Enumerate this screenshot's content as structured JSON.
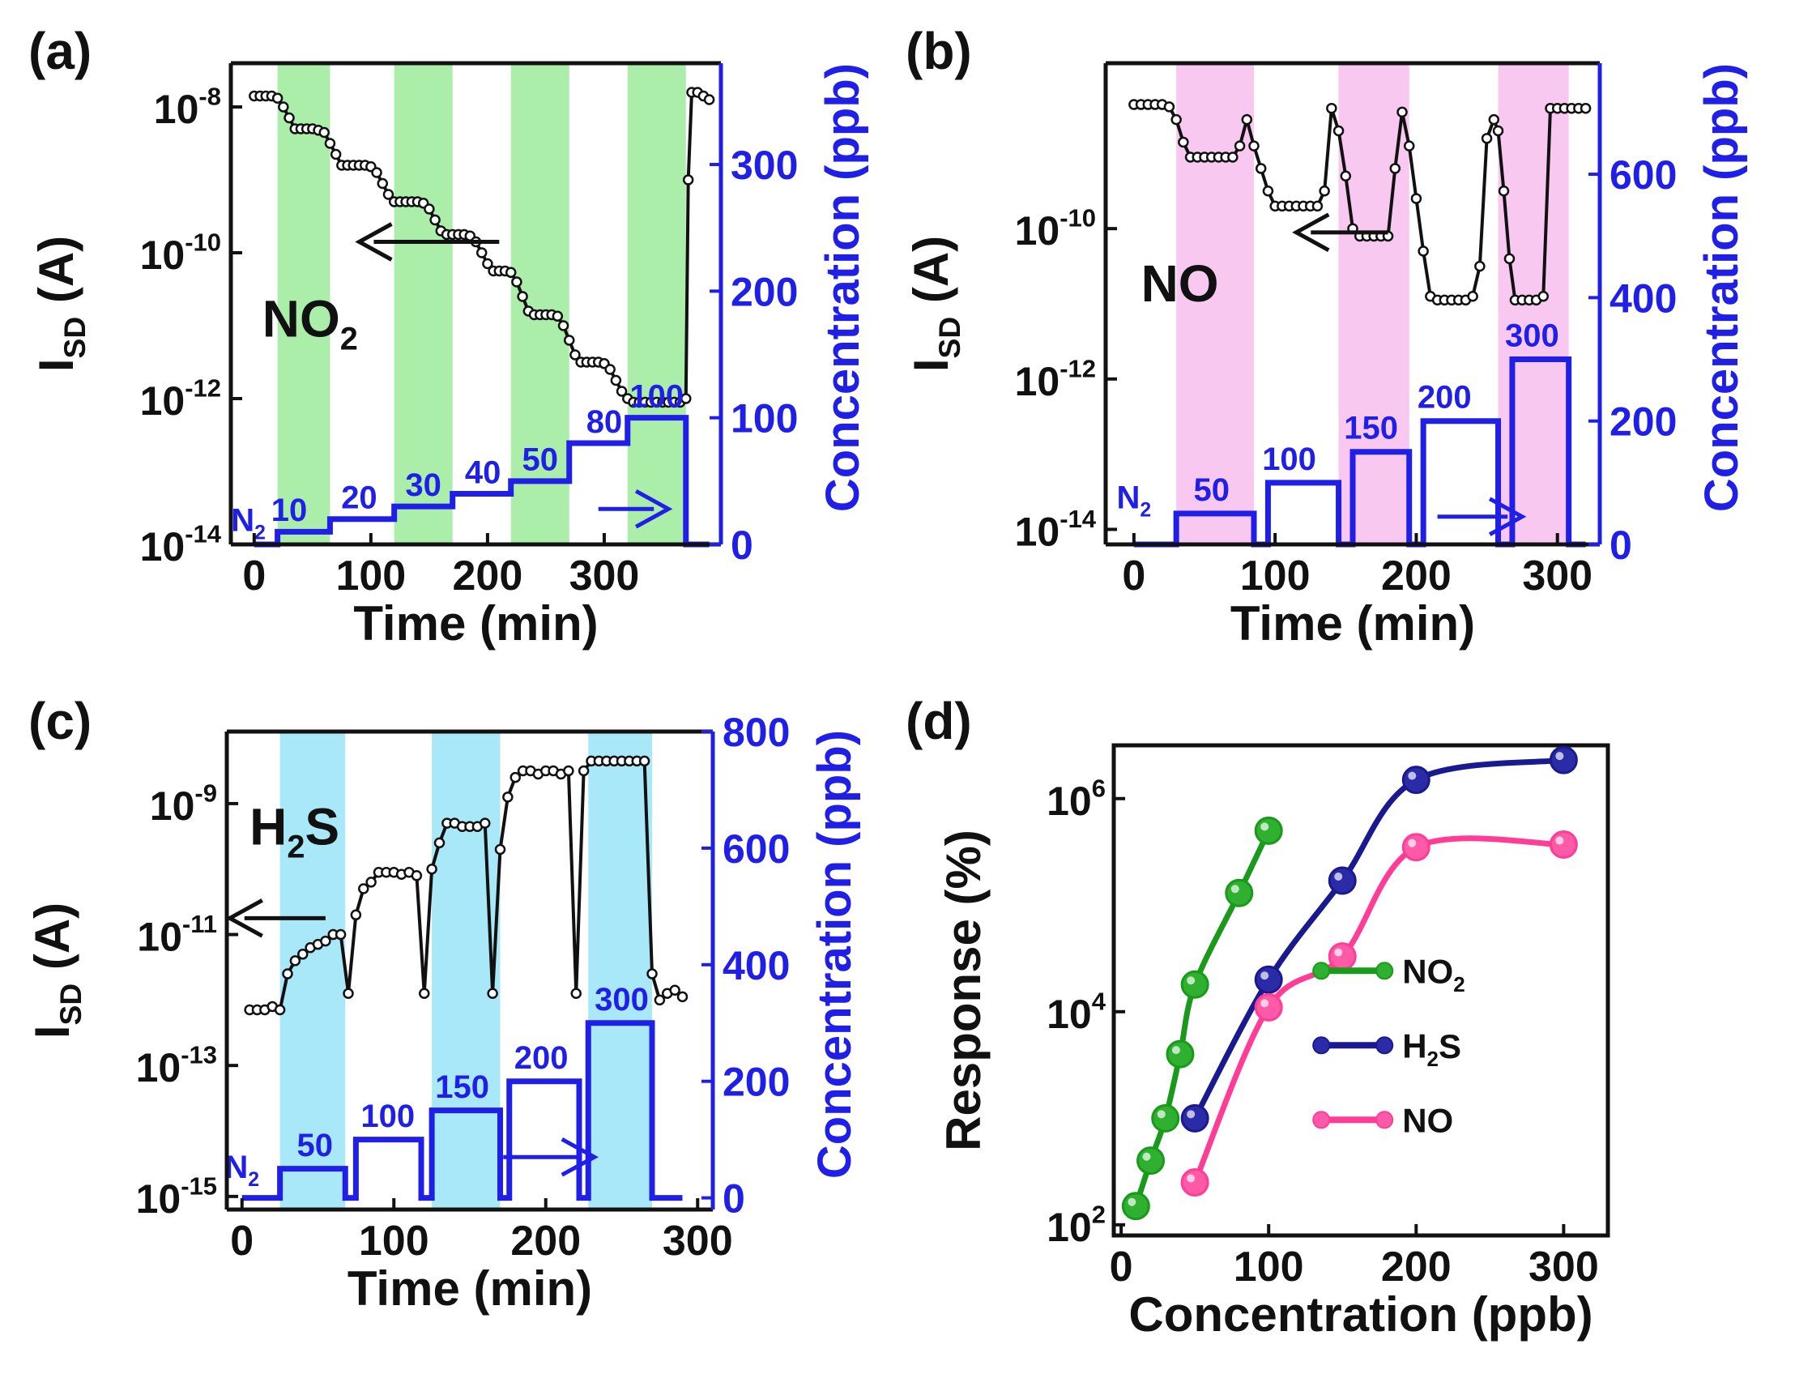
{
  "chart_data": [
    {
      "panel": "(a)",
      "type": "line",
      "title": "",
      "gas_label": "NO",
      "gas_sub": "2",
      "xlabel": "Time (min)",
      "ylabel_left_main": "I",
      "ylabel_left_sub": "SD",
      "ylabel_left_tail": " (A)",
      "ylabel_right": "Concentration (ppb)",
      "xlim": [
        -20,
        400
      ],
      "xticks": [
        "0",
        "100",
        "200",
        "300"
      ],
      "ylim_left_exp": [
        -14,
        -7.4
      ],
      "yticks_left": [
        {
          "base": "10",
          "exp": "-8"
        },
        {
          "base": "10",
          "exp": "-10"
        },
        {
          "base": "10",
          "exp": "-12"
        },
        {
          "base": "10",
          "exp": "-14"
        }
      ],
      "ylim_right": [
        0,
        380
      ],
      "yticks_right": [
        "0",
        "100",
        "200",
        "300"
      ],
      "band_color": "#aaeeaa",
      "gas_windows": [
        [
          20,
          65
        ],
        [
          120,
          170
        ],
        [
          220,
          270
        ],
        [
          320,
          370
        ]
      ],
      "current_series_log10": {
        "x": [
          0,
          5,
          10,
          15,
          20,
          25,
          30,
          35,
          40,
          45,
          50,
          55,
          60,
          65,
          70,
          75,
          80,
          85,
          90,
          95,
          100,
          105,
          110,
          115,
          120,
          125,
          130,
          135,
          140,
          145,
          150,
          155,
          160,
          165,
          170,
          175,
          180,
          185,
          190,
          195,
          200,
          205,
          210,
          215,
          220,
          225,
          230,
          235,
          240,
          245,
          250,
          255,
          260,
          265,
          270,
          275,
          280,
          285,
          290,
          295,
          300,
          305,
          310,
          315,
          320,
          325,
          330,
          335,
          340,
          345,
          350,
          355,
          360,
          365,
          370,
          372,
          375,
          380,
          385,
          390
        ],
        "y": [
          -7.85,
          -7.85,
          -7.85,
          -7.85,
          -7.88,
          -8.0,
          -8.15,
          -8.3,
          -8.3,
          -8.3,
          -8.3,
          -8.32,
          -8.35,
          -8.5,
          -8.65,
          -8.8,
          -8.8,
          -8.8,
          -8.8,
          -8.8,
          -8.82,
          -8.9,
          -9.05,
          -9.2,
          -9.3,
          -9.3,
          -9.3,
          -9.3,
          -9.3,
          -9.32,
          -9.4,
          -9.55,
          -9.7,
          -9.75,
          -9.75,
          -9.75,
          -9.75,
          -9.77,
          -9.85,
          -10.0,
          -10.15,
          -10.25,
          -10.25,
          -10.25,
          -10.27,
          -10.4,
          -10.6,
          -10.8,
          -10.85,
          -10.85,
          -10.85,
          -10.85,
          -10.87,
          -11.0,
          -11.2,
          -11.4,
          -11.5,
          -11.5,
          -11.5,
          -11.5,
          -11.52,
          -11.6,
          -11.75,
          -11.9,
          -12.0,
          -12.05,
          -12.05,
          -12.05,
          -12.05,
          -12.05,
          -12.05,
          -12.05,
          -12.05,
          -12.05,
          -12.0,
          -9.0,
          -7.8,
          -7.8,
          -7.85,
          -7.9
        ]
      },
      "concentration_series": {
        "x": [
          0,
          20,
          20,
          65,
          65,
          120,
          120,
          170,
          170,
          220,
          220,
          270,
          270,
          320,
          320,
          370,
          370,
          390
        ],
        "y": [
          0,
          0,
          10,
          10,
          20,
          20,
          30,
          30,
          40,
          40,
          50,
          50,
          80,
          80,
          100,
          100,
          0,
          0
        ]
      },
      "step_labels": [
        {
          "text": "N",
          "sub": "2",
          "x": -5,
          "y": 4
        },
        {
          "text": "10",
          "x": 30,
          "y": 12
        },
        {
          "text": "20",
          "x": 90,
          "y": 22
        },
        {
          "text": "30",
          "x": 145,
          "y": 32
        },
        {
          "text": "40",
          "x": 196,
          "y": 42
        },
        {
          "text": "50",
          "x": 245,
          "y": 52
        },
        {
          "text": "80",
          "x": 300,
          "y": 82
        },
        {
          "text": "100",
          "x": 345,
          "y": 102
        }
      ],
      "left_arrow": {
        "x_from": 210,
        "x_to": 90,
        "y_log": -9.85
      },
      "right_arrow": {
        "x_from": 295,
        "x_to": 355,
        "y_conc": 28
      }
    },
    {
      "panel": "(b)",
      "type": "line",
      "title": "",
      "gas_label": "NO",
      "gas_sub": "",
      "xlabel": "Time (min)",
      "ylabel_left_main": "I",
      "ylabel_left_sub": "SD",
      "ylabel_left_tail": " (A)",
      "ylabel_right": "Concentration (ppb)",
      "xlim": [
        -20,
        330
      ],
      "xticks": [
        "0",
        "100",
        "200",
        "300"
      ],
      "ylim_left_exp": [
        -14.2,
        -7.8
      ],
      "yticks_left": [
        {
          "base": "10",
          "exp": "-10"
        },
        {
          "base": "10",
          "exp": "-12"
        },
        {
          "base": "10",
          "exp": "-14"
        }
      ],
      "ylim_right": [
        0,
        780
      ],
      "yticks_right": [
        "0",
        "200",
        "400",
        "600"
      ],
      "band_color": "#f8c8f0",
      "gas_windows": [
        [
          30,
          85
        ],
        [
          145,
          195
        ],
        [
          258,
          308
        ]
      ],
      "current_series_log10": {
        "x": [
          0,
          5,
          10,
          15,
          20,
          25,
          30,
          35,
          40,
          45,
          50,
          55,
          60,
          65,
          70,
          75,
          80,
          85,
          90,
          95,
          100,
          105,
          110,
          115,
          120,
          125,
          130,
          135,
          140,
          145,
          150,
          155,
          160,
          165,
          170,
          175,
          180,
          185,
          190,
          195,
          200,
          205,
          210,
          215,
          220,
          225,
          230,
          235,
          240,
          245,
          250,
          255,
          258,
          262,
          266,
          270,
          275,
          280,
          285,
          290,
          295,
          300,
          305,
          310,
          315,
          320
        ],
        "y": [
          -8.35,
          -8.35,
          -8.35,
          -8.35,
          -8.35,
          -8.38,
          -8.55,
          -8.85,
          -9.05,
          -9.05,
          -9.05,
          -9.05,
          -9.05,
          -9.05,
          -9.05,
          -8.9,
          -8.55,
          -8.9,
          -9.2,
          -9.5,
          -9.7,
          -9.7,
          -9.7,
          -9.7,
          -9.7,
          -9.7,
          -9.7,
          -9.5,
          -8.4,
          -8.7,
          -9.3,
          -10.0,
          -10.1,
          -10.1,
          -10.1,
          -10.1,
          -10.1,
          -9.2,
          -8.45,
          -8.9,
          -9.6,
          -10.3,
          -10.9,
          -10.95,
          -10.95,
          -10.95,
          -10.95,
          -10.95,
          -10.9,
          -10.5,
          -8.8,
          -8.55,
          -8.7,
          -9.5,
          -10.4,
          -10.95,
          -10.95,
          -10.95,
          -10.95,
          -10.9,
          -8.4,
          -8.4,
          -8.4,
          -8.4,
          -8.4,
          -8.4
        ]
      },
      "concentration_series": {
        "x": [
          0,
          30,
          30,
          85,
          85,
          95,
          95,
          145,
          145,
          155,
          155,
          195,
          195,
          205,
          205,
          258,
          258,
          268,
          268,
          308,
          308,
          320
        ],
        "y": [
          0,
          0,
          50,
          50,
          0,
          0,
          100,
          100,
          0,
          0,
          150,
          150,
          0,
          0,
          200,
          200,
          0,
          0,
          300,
          300,
          0,
          0
        ]
      },
      "step_labels": [
        {
          "text": "N",
          "sub": "2",
          "x": 0,
          "y": 45
        },
        {
          "text": "50",
          "x": 55,
          "y": 58
        },
        {
          "text": "100",
          "x": 110,
          "y": 108
        },
        {
          "text": "150",
          "x": 168,
          "y": 158
        },
        {
          "text": "200",
          "x": 220,
          "y": 208
        },
        {
          "text": "300",
          "x": 282,
          "y": 308
        }
      ],
      "left_arrow": {
        "x_from": 180,
        "x_to": 115,
        "y_log": -10.05
      },
      "right_arrow": {
        "x_from": 215,
        "x_to": 275,
        "y_conc": 45
      }
    },
    {
      "panel": "(c)",
      "type": "line",
      "title": "",
      "gas_label": "H",
      "gas_sub": "2",
      "gas_tail": "S",
      "xlabel": "Time (min)",
      "ylabel_left_main": "I",
      "ylabel_left_sub": "SD",
      "ylabel_left_tail": " (A)",
      "ylabel_right": "Concentration (ppb)",
      "xlim": [
        -10,
        310
      ],
      "xticks": [
        "0",
        "100",
        "200",
        "300"
      ],
      "ylim_left_exp": [
        -15.2,
        -7.9
      ],
      "yticks_left": [
        {
          "base": "10",
          "exp": "-9"
        },
        {
          "base": "10",
          "exp": "-11"
        },
        {
          "base": "10",
          "exp": "-13"
        },
        {
          "base": "10",
          "exp": "-15"
        }
      ],
      "ylim_right": [
        -20,
        800
      ],
      "yticks_right": [
        "0",
        "200",
        "400",
        "600",
        "800"
      ],
      "band_color": "#a8e8f8",
      "gas_windows": [
        [
          25,
          68
        ],
        [
          125,
          170
        ],
        [
          228,
          270
        ]
      ],
      "current_series_log10": {
        "x": [
          5,
          10,
          15,
          20,
          25,
          30,
          35,
          40,
          45,
          50,
          55,
          60,
          65,
          70,
          75,
          80,
          85,
          90,
          95,
          100,
          105,
          110,
          115,
          120,
          125,
          130,
          135,
          140,
          145,
          150,
          155,
          160,
          165,
          170,
          175,
          180,
          185,
          190,
          195,
          200,
          205,
          210,
          215,
          220,
          225,
          230,
          235,
          240,
          245,
          250,
          255,
          260,
          265,
          270,
          275,
          280,
          285,
          290
        ],
        "y": [
          -12.15,
          -12.15,
          -12.15,
          -12.1,
          -12.15,
          -11.6,
          -11.4,
          -11.3,
          -11.2,
          -11.15,
          -11.1,
          -11.0,
          -11.0,
          -11.9,
          -10.7,
          -10.3,
          -10.2,
          -10.05,
          -10.05,
          -10.05,
          -10.08,
          -10.05,
          -10.1,
          -11.9,
          -10.0,
          -9.6,
          -9.3,
          -9.3,
          -9.35,
          -9.35,
          -9.35,
          -9.3,
          -11.9,
          -9.7,
          -8.9,
          -8.6,
          -8.5,
          -8.5,
          -8.55,
          -8.5,
          -8.5,
          -8.55,
          -8.5,
          -11.9,
          -8.5,
          -8.35,
          -8.35,
          -8.35,
          -8.35,
          -8.35,
          -8.35,
          -8.35,
          -8.35,
          -11.6,
          -12.0,
          -11.9,
          -11.85,
          -11.95
        ]
      },
      "concentration_series": {
        "x": [
          0,
          25,
          25,
          68,
          68,
          75,
          75,
          118,
          118,
          125,
          125,
          170,
          170,
          176,
          176,
          222,
          222,
          228,
          228,
          270,
          270,
          290
        ],
        "y": [
          0,
          0,
          50,
          50,
          0,
          0,
          100,
          100,
          0,
          0,
          150,
          150,
          0,
          0,
          200,
          200,
          0,
          0,
          300,
          300,
          0,
          0
        ]
      },
      "step_labels": [
        {
          "text": "N",
          "sub": "2",
          "x": 0,
          "y": 20
        },
        {
          "text": "50",
          "x": 48,
          "y": 58
        },
        {
          "text": "100",
          "x": 96,
          "y": 108
        },
        {
          "text": "150",
          "x": 145,
          "y": 158
        },
        {
          "text": "200",
          "x": 197,
          "y": 208
        },
        {
          "text": "300",
          "x": 250,
          "y": 308
        }
      ],
      "left_arrow": {
        "x_from": 55,
        "x_to": -8,
        "y_log": -10.75
      },
      "right_arrow": {
        "x_from": 172,
        "x_to": 232,
        "y_conc": 70
      }
    },
    {
      "panel": "(d)",
      "type": "line",
      "title": "",
      "xlabel": "Concentration (ppb)",
      "ylabel": "Response (%)",
      "xlim": [
        -5,
        330
      ],
      "xticks": [
        "0",
        "100",
        "200",
        "300"
      ],
      "ylim_exp": [
        1.9,
        6.5
      ],
      "yticks": [
        {
          "base": "10",
          "exp": "2"
        },
        {
          "base": "10",
          "exp": "4"
        },
        {
          "base": "10",
          "exp": "6"
        }
      ],
      "series": [
        {
          "name": "NO",
          "name_sub": "2",
          "color": "#1a9a1a",
          "dot": "#30b030",
          "x": [
            10,
            20,
            30,
            40,
            50,
            80,
            100
          ],
          "y": [
            150,
            400,
            1000,
            4000,
            18000,
            130000,
            500000
          ]
        },
        {
          "name": "H",
          "name_sub": "2",
          "name_tail": "S",
          "color": "#1a1a90",
          "dot": "#2b2ba8",
          "x": [
            50,
            100,
            150,
            200,
            300
          ],
          "y": [
            1000,
            20000,
            170000,
            1500000,
            2300000
          ]
        },
        {
          "name": "NO",
          "name_sub": "",
          "color": "#ff3c96",
          "dot": "#ff5aa8",
          "x": [
            50,
            100,
            150,
            200,
            300
          ],
          "y": [
            250,
            11000,
            33000,
            350000,
            370000
          ]
        }
      ]
    }
  ]
}
